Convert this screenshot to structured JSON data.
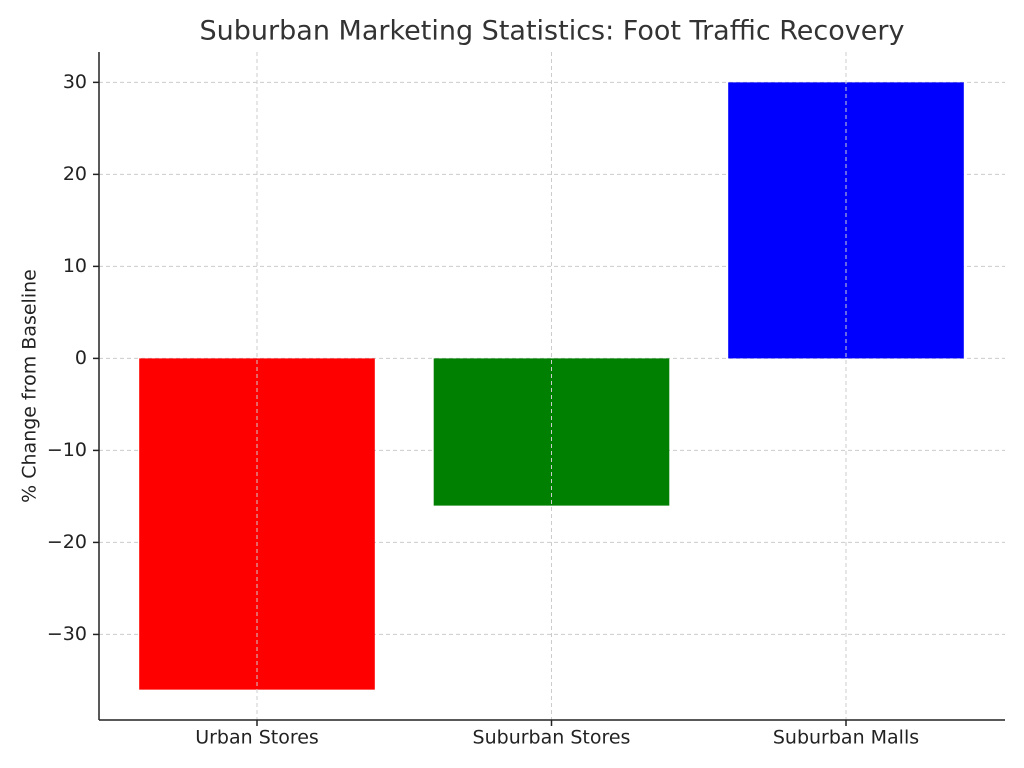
{
  "chart_data": {
    "type": "bar",
    "title": "Suburban Marketing Statistics: Foot Traffic Recovery",
    "y_label": "% Change from Baseline",
    "categories": [
      "Urban Stores",
      "Suburban Stores",
      "Suburban Malls"
    ],
    "values": [
      -36,
      -16,
      30
    ],
    "colors": [
      "#ff0000",
      "#008000",
      "#0000ff"
    ],
    "ylim": [
      -39.3,
      33.3
    ],
    "yticks": [
      {
        "value": -30,
        "label": "−30"
      },
      {
        "value": -20,
        "label": "−20"
      },
      {
        "value": -10,
        "label": "−10"
      },
      0,
      10,
      20,
      30
    ],
    "grid": true
  }
}
